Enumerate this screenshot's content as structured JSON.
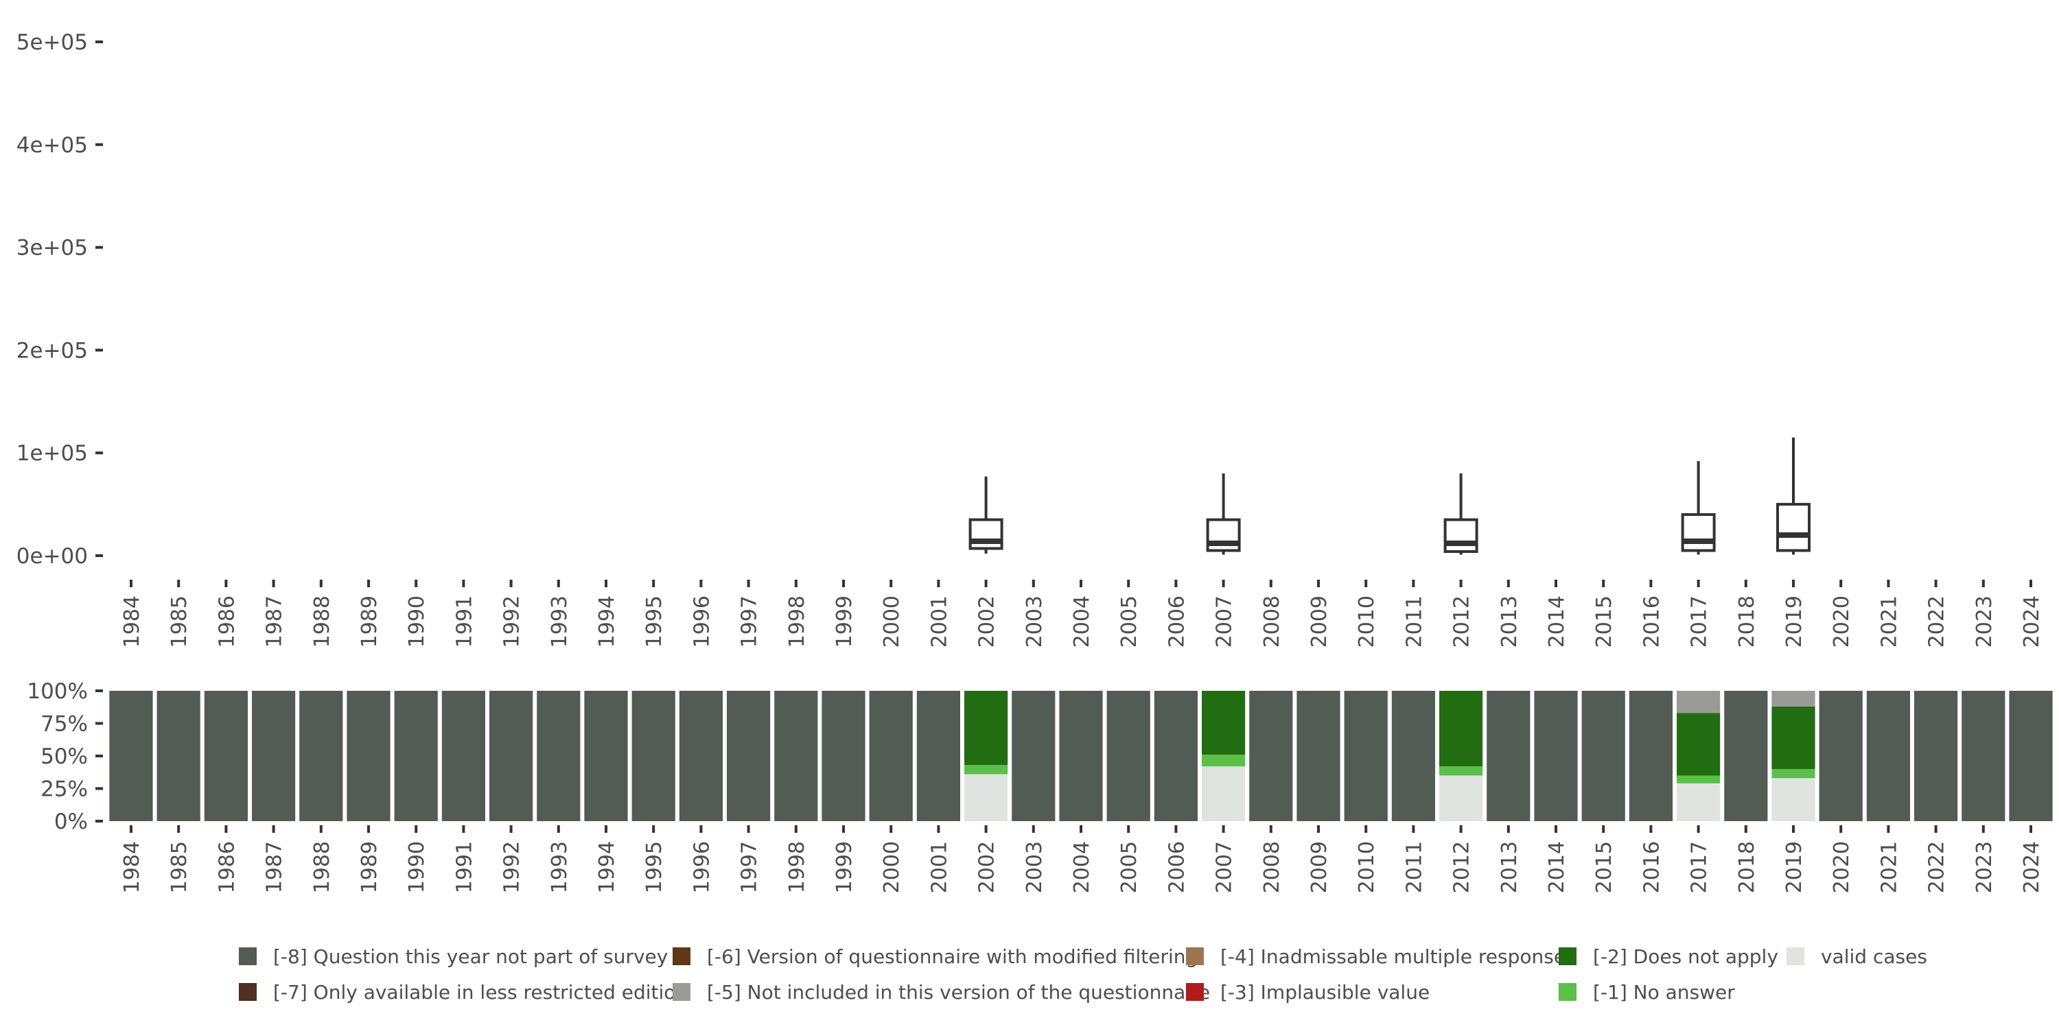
{
  "chart_data": [
    {
      "type": "boxplot",
      "title": "",
      "xlabel": "",
      "ylabel": "",
      "ylim": [
        0,
        500000
      ],
      "y_ticks": [
        0,
        100000,
        200000,
        300000,
        400000,
        500000
      ],
      "y_tick_labels": [
        "0e+00",
        "1e+05",
        "2e+05",
        "3e+05",
        "4e+05",
        "5e+05"
      ],
      "categories": [
        "1984",
        "1985",
        "1986",
        "1987",
        "1988",
        "1989",
        "1990",
        "1991",
        "1992",
        "1993",
        "1994",
        "1995",
        "1996",
        "1997",
        "1998",
        "1999",
        "2000",
        "2001",
        "2002",
        "2003",
        "2004",
        "2005",
        "2006",
        "2007",
        "2008",
        "2009",
        "2010",
        "2011",
        "2012",
        "2013",
        "2014",
        "2015",
        "2016",
        "2017",
        "2018",
        "2019",
        "2020",
        "2021",
        "2022",
        "2023",
        "2024"
      ],
      "boxes": [
        {
          "year": "2002",
          "whisker_low": 2000,
          "q1": 7000,
          "median": 14000,
          "q3": 35000,
          "whisker_high": 77000
        },
        {
          "year": "2007",
          "whisker_low": 1000,
          "q1": 5000,
          "median": 12000,
          "q3": 35000,
          "whisker_high": 80000
        },
        {
          "year": "2012",
          "whisker_low": 1000,
          "q1": 4000,
          "median": 12000,
          "q3": 35000,
          "whisker_high": 80000
        },
        {
          "year": "2017",
          "whisker_low": 1000,
          "q1": 5000,
          "median": 14000,
          "q3": 40000,
          "whisker_high": 92000
        },
        {
          "year": "2019",
          "whisker_low": 1000,
          "q1": 5000,
          "median": 20000,
          "q3": 50000,
          "whisker_high": 115000
        }
      ]
    },
    {
      "type": "stacked_bar",
      "title": "",
      "xlabel": "",
      "ylabel": "",
      "ylim": [
        0,
        100
      ],
      "y_ticks": [
        0,
        25,
        50,
        75,
        100
      ],
      "y_tick_labels": [
        "0%",
        "25%",
        "50%",
        "75%",
        "100%"
      ],
      "categories": [
        "1984",
        "1985",
        "1986",
        "1987",
        "1988",
        "1989",
        "1990",
        "1991",
        "1992",
        "1993",
        "1994",
        "1995",
        "1996",
        "1997",
        "1998",
        "1999",
        "2000",
        "2001",
        "2002",
        "2003",
        "2004",
        "2005",
        "2006",
        "2007",
        "2008",
        "2009",
        "2010",
        "2011",
        "2012",
        "2013",
        "2014",
        "2015",
        "2016",
        "2017",
        "2018",
        "2019",
        "2020",
        "2021",
        "2022",
        "2023",
        "2024"
      ],
      "default_stack": [
        {
          "cat": "q8",
          "value": 100
        }
      ],
      "overrides": {
        "2002": [
          {
            "cat": "valid",
            "value": 36
          },
          {
            "cat": "q1",
            "value": 7
          },
          {
            "cat": "q2",
            "value": 57
          }
        ],
        "2007": [
          {
            "cat": "valid",
            "value": 42
          },
          {
            "cat": "q1",
            "value": 9
          },
          {
            "cat": "q2",
            "value": 49
          }
        ],
        "2012": [
          {
            "cat": "valid",
            "value": 35
          },
          {
            "cat": "q1",
            "value": 7
          },
          {
            "cat": "q2",
            "value": 58
          }
        ],
        "2017": [
          {
            "cat": "valid",
            "value": 29
          },
          {
            "cat": "q1",
            "value": 6
          },
          {
            "cat": "q2",
            "value": 48
          },
          {
            "cat": "q5",
            "value": 17
          }
        ],
        "2019": [
          {
            "cat": "valid",
            "value": 33
          },
          {
            "cat": "q1",
            "value": 7
          },
          {
            "cat": "q2",
            "value": 48
          },
          {
            "cat": "q5",
            "value": 12
          }
        ]
      }
    }
  ],
  "legend": {
    "placement": "bottom",
    "items": [
      {
        "key": "q8",
        "label": "[-8] Question this year not part of survey",
        "color": "#535b55"
      },
      {
        "key": "q7",
        "label": "[-7] Only available in less restricted edition",
        "color": "#4f2f1e"
      },
      {
        "key": "q6",
        "label": "[-6] Version of questionnaire with modified filtering",
        "color": "#5e3818"
      },
      {
        "key": "q5",
        "label": "[-5] Not included in this version of the questionnaire",
        "color": "#9a9b96"
      },
      {
        "key": "q4",
        "label": "[-4] Inadmissable multiple response",
        "color": "#9c7650"
      },
      {
        "key": "q3",
        "label": "[-3] Implausible value",
        "color": "#b11b1b"
      },
      {
        "key": "q2",
        "label": "[-2] Does not apply",
        "color": "#226d12"
      },
      {
        "key": "q1",
        "label": "[-1] No answer",
        "color": "#5bbf49"
      },
      {
        "key": "valid",
        "label": "valid cases",
        "color": "#e0e4e0"
      }
    ]
  },
  "colors": {
    "box_stroke": "#333333",
    "axis_text": "#4d4d4d",
    "tick": "#333333"
  }
}
